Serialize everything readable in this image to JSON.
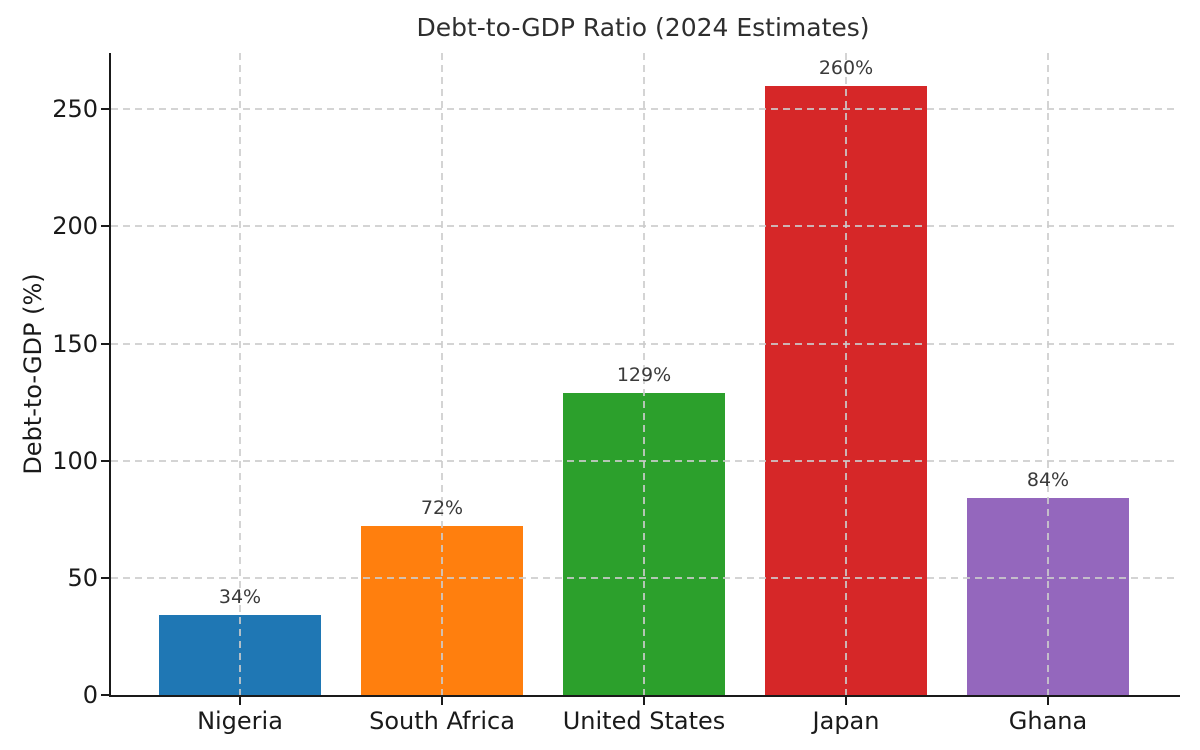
{
  "chart_data": {
    "type": "bar",
    "title": "Debt-to-GDP Ratio (2024 Estimates)",
    "xlabel": "",
    "ylabel": "Debt-to-GDP (%)",
    "categories": [
      "Nigeria",
      "South Africa",
      "United States",
      "Japan",
      "Ghana"
    ],
    "values": [
      34,
      72,
      129,
      260,
      84
    ],
    "value_labels": [
      "34%",
      "72%",
      "129%",
      "260%",
      "84%"
    ],
    "bar_colors": [
      "#1f77b4",
      "#ff7f0e",
      "#2ca02c",
      "#d62728",
      "#9467bd"
    ],
    "yticks": [
      0,
      50,
      100,
      150,
      200,
      250
    ],
    "ylim": [
      0,
      274
    ],
    "grid": "dashed, horizontal and vertical, drawn over bars",
    "grid_color": "#cccccc",
    "axis_color": "#1a1a1a",
    "value_label_color": "#3a3a3a",
    "background_color": "#ffffff",
    "legend": "none"
  }
}
